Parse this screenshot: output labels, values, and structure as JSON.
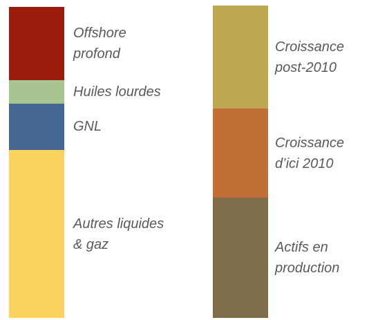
{
  "chart_data": {
    "type": "stacked-bar",
    "bars": [
      {
        "segments": [
          {
            "name": "Offshore\nprofond",
            "color": "#9b1c0a",
            "value": 23.5
          },
          {
            "name": "Huiles lourdes",
            "color": "#a8c491",
            "value": 7.5
          },
          {
            "name": "GNL",
            "color": "#456893",
            "value": 15
          },
          {
            "name": "Autres liquides\n& gaz",
            "color": "#fcd25e",
            "value": 54
          }
        ]
      },
      {
        "segments": [
          {
            "name": "Croissance\npost-2010",
            "color": "#bfa651",
            "value": 33
          },
          {
            "name": "Croissance\nd’ici 2010",
            "color": "#c16f37",
            "value": 28.5
          },
          {
            "name": "Actifs en\nproduction",
            "color": "#7f6c48",
            "value": 38.5
          }
        ]
      }
    ]
  }
}
